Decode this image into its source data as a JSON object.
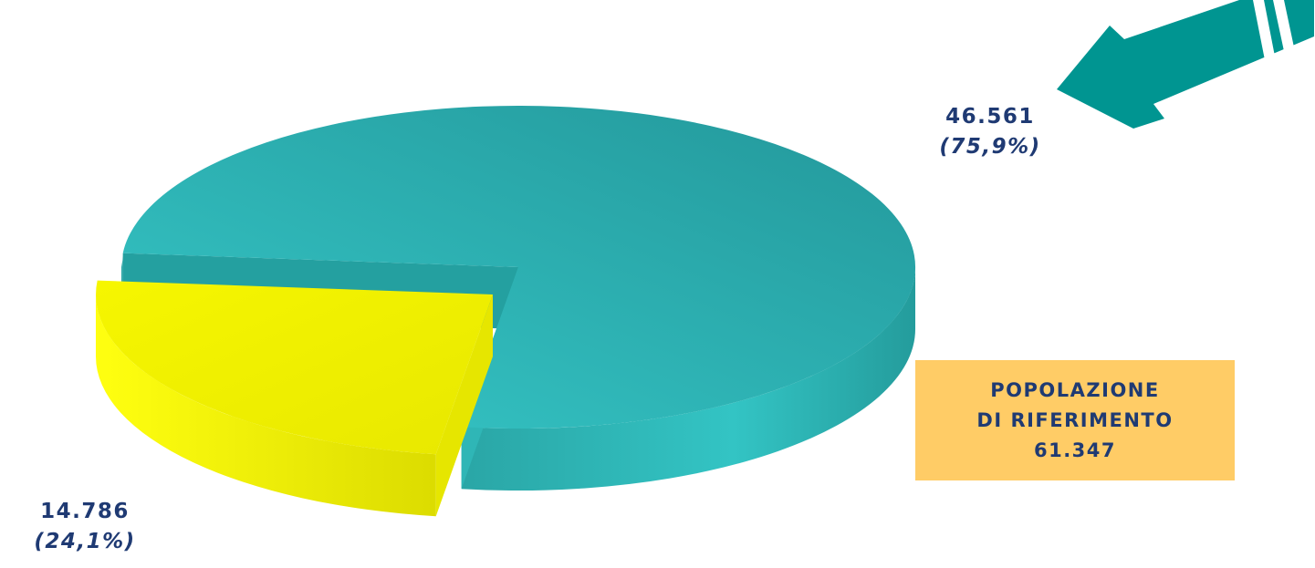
{
  "chart_data": {
    "type": "pie",
    "title": "",
    "slices": [
      {
        "label": "46.561",
        "percent_label": "(75,9%)",
        "value": 46561,
        "percent": 75.9,
        "color": "#2bb5b2"
      },
      {
        "label": "14.786",
        "percent_label": "(24,1%)",
        "value": 14786,
        "percent": 24.1,
        "color": "#f2f200",
        "exploded": true
      }
    ],
    "total": {
      "line1": "POPOLAZIONE",
      "line2": "DI RIFERIMENTO",
      "value": "61.347"
    }
  },
  "colors": {
    "accent_arrow": "#009591",
    "label_text": "#1f3a73",
    "total_box": "#ffcc66"
  }
}
